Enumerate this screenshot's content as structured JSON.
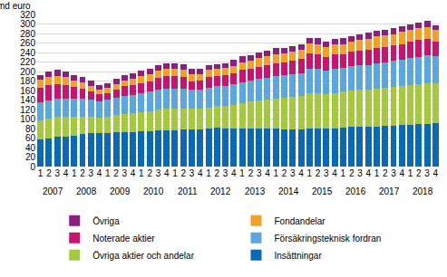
{
  "chart_data": {
    "type": "bar",
    "stacked": true,
    "grid": true,
    "legend": "bottom",
    "ylabel": "md euro",
    "ylim": [
      0,
      320
    ],
    "yticks": [
      0,
      20,
      40,
      60,
      80,
      100,
      120,
      140,
      160,
      180,
      200,
      220,
      240,
      260,
      280,
      300,
      320
    ],
    "categories": [
      [
        "2007",
        "1"
      ],
      [
        "2007",
        "2"
      ],
      [
        "2007",
        "3"
      ],
      [
        "2007",
        "4"
      ],
      [
        "2008",
        "1"
      ],
      [
        "2008",
        "2"
      ],
      [
        "2008",
        "3"
      ],
      [
        "2008",
        "4"
      ],
      [
        "2009",
        "1"
      ],
      [
        "2009",
        "2"
      ],
      [
        "2009",
        "3"
      ],
      [
        "2009",
        "4"
      ],
      [
        "2010",
        "1"
      ],
      [
        "2010",
        "2"
      ],
      [
        "2010",
        "3"
      ],
      [
        "2010",
        "4"
      ],
      [
        "2011",
        "1"
      ],
      [
        "2011",
        "2"
      ],
      [
        "2011",
        "3"
      ],
      [
        "2011",
        "4"
      ],
      [
        "2012",
        "1"
      ],
      [
        "2012",
        "2"
      ],
      [
        "2012",
        "3"
      ],
      [
        "2012",
        "4"
      ],
      [
        "2013",
        "1"
      ],
      [
        "2013",
        "2"
      ],
      [
        "2013",
        "3"
      ],
      [
        "2013",
        "4"
      ],
      [
        "2014",
        "1"
      ],
      [
        "2014",
        "2"
      ],
      [
        "2014",
        "3"
      ],
      [
        "2014",
        "4"
      ],
      [
        "2015",
        "1"
      ],
      [
        "2015",
        "2"
      ],
      [
        "2015",
        "3"
      ],
      [
        "2015",
        "4"
      ],
      [
        "2016",
        "1"
      ],
      [
        "2016",
        "2"
      ],
      [
        "2016",
        "3"
      ],
      [
        "2016",
        "4"
      ],
      [
        "2017",
        "1"
      ],
      [
        "2017",
        "2"
      ],
      [
        "2017",
        "3"
      ],
      [
        "2017",
        "4"
      ],
      [
        "2018",
        "1"
      ],
      [
        "2018",
        "2"
      ],
      [
        "2018",
        "3"
      ],
      [
        "2018",
        "4"
      ]
    ],
    "series": [
      {
        "name": "Insättningar",
        "color": "#0a69b4",
        "values": [
          58,
          60,
          62,
          63,
          65,
          68,
          70,
          70,
          71,
          72,
          73,
          73,
          74,
          75,
          76,
          77,
          77,
          78,
          79,
          79,
          80,
          81,
          80,
          80,
          80,
          80,
          80,
          80,
          80,
          79,
          79,
          79,
          80,
          80,
          80,
          80,
          82,
          83,
          83,
          83,
          84,
          85,
          86,
          87,
          88,
          89,
          90,
          91
        ]
      },
      {
        "name": "Övriga aktier och andelar",
        "color": "#a5c93c",
        "values": [
          40,
          41,
          42,
          41,
          39,
          37,
          35,
          33,
          34,
          36,
          38,
          39,
          40,
          42,
          44,
          45,
          45,
          44,
          42,
          42,
          44,
          46,
          48,
          50,
          54,
          57,
          59,
          61,
          63,
          65,
          67,
          69,
          74,
          75,
          73,
          75,
          76,
          77,
          78,
          79,
          80,
          81,
          82,
          83,
          84,
          85,
          86,
          85
        ]
      },
      {
        "name": "Försäkringsteknisk fordran",
        "color": "#5aa6e1",
        "values": [
          38,
          39,
          39,
          39,
          38,
          37,
          36,
          35,
          36,
          37,
          38,
          39,
          40,
          41,
          41,
          42,
          42,
          41,
          40,
          40,
          41,
          42,
          42,
          43,
          44,
          44,
          45,
          46,
          47,
          48,
          48,
          49,
          51,
          50,
          49,
          50,
          50,
          51,
          52,
          52,
          53,
          53,
          54,
          54,
          56,
          57,
          58,
          56
        ]
      },
      {
        "name": "Noterade aktier",
        "color": "#c8146e",
        "values": [
          30,
          32,
          31,
          29,
          25,
          22,
          18,
          14,
          14,
          17,
          20,
          21,
          22,
          22,
          25,
          26,
          26,
          25,
          19,
          20,
          23,
          21,
          22,
          23,
          25,
          24,
          26,
          27,
          28,
          27,
          28,
          29,
          33,
          32,
          29,
          31,
          29,
          30,
          31,
          32,
          33,
          33,
          33,
          34,
          34,
          35,
          35,
          31
        ]
      },
      {
        "name": "Fondandelar",
        "color": "#f3a02a",
        "values": [
          16,
          17,
          17,
          16,
          14,
          13,
          11,
          9,
          10,
          11,
          12,
          13,
          14,
          14,
          15,
          16,
          16,
          16,
          14,
          14,
          15,
          15,
          15,
          16,
          17,
          17,
          18,
          18,
          19,
          19,
          19,
          20,
          21,
          21,
          20,
          21,
          21,
          22,
          22,
          23,
          24,
          24,
          24,
          25,
          25,
          25,
          25,
          24
        ]
      },
      {
        "name": "Övriga",
        "color": "#8c1e82",
        "values": [
          11,
          11,
          12,
          12,
          11,
          11,
          11,
          11,
          11,
          11,
          11,
          11,
          11,
          11,
          12,
          12,
          12,
          12,
          11,
          11,
          11,
          11,
          11,
          12,
          12,
          12,
          12,
          12,
          12,
          12,
          12,
          12,
          12,
          12,
          12,
          12,
          12,
          12,
          12,
          12,
          12,
          12,
          12,
          12,
          12,
          12,
          12,
          11
        ]
      }
    ]
  }
}
